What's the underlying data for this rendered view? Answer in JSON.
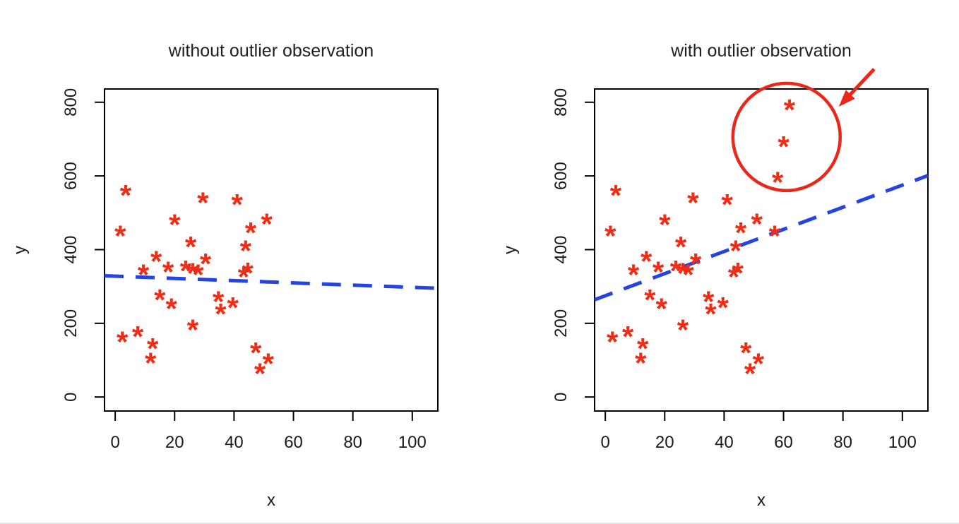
{
  "page": {
    "background": "#ffffff"
  },
  "colors": {
    "points": "#ee2d16",
    "regression": "#2443df",
    "annotation": "#e8281a",
    "axis": "#000000",
    "tick_labels": "#1b1b1b",
    "title": "#212121"
  },
  "chart_data": [
    {
      "type": "scatter",
      "title": "without outlier observation",
      "xlabel": "x",
      "ylabel": "y",
      "xlim": [
        -3.6,
        108.6
      ],
      "ylim": [
        -38,
        836
      ],
      "xticks": [
        0,
        20,
        40,
        60,
        80,
        100
      ],
      "yticks": [
        0,
        200,
        400,
        600,
        800
      ],
      "grid": false,
      "marker": "*",
      "points": [
        [
          3.5,
          560
        ],
        [
          1.7,
          450
        ],
        [
          29.5,
          540
        ],
        [
          41,
          535
        ],
        [
          20,
          480
        ],
        [
          25.4,
          420
        ],
        [
          45.6,
          458
        ],
        [
          51,
          482
        ],
        [
          43.9,
          410
        ],
        [
          13.8,
          381
        ],
        [
          9.5,
          344
        ],
        [
          17.8,
          352
        ],
        [
          23.7,
          355
        ],
        [
          26.1,
          348
        ],
        [
          27.9,
          344
        ],
        [
          30.4,
          374
        ],
        [
          43.2,
          339
        ],
        [
          44.6,
          349
        ],
        [
          15,
          276
        ],
        [
          18.9,
          252
        ],
        [
          34.7,
          272
        ],
        [
          35.5,
          238
        ],
        [
          39.6,
          255
        ],
        [
          26.1,
          195
        ],
        [
          2.4,
          162
        ],
        [
          7.6,
          177
        ],
        [
          12.6,
          144
        ],
        [
          11.9,
          105
        ],
        [
          47.3,
          133
        ],
        [
          48.7,
          76
        ],
        [
          51.5,
          103
        ]
      ],
      "regression_line": {
        "style": "dashed",
        "endpoints": [
          [
            -3.6,
            329
          ],
          [
            108.6,
            295
          ]
        ]
      }
    },
    {
      "type": "scatter",
      "title": "with outlier observation",
      "xlabel": "x",
      "ylabel": "y",
      "xlim": [
        -3.6,
        108.6
      ],
      "ylim": [
        -38,
        836
      ],
      "xticks": [
        0,
        20,
        40,
        60,
        80,
        100
      ],
      "yticks": [
        0,
        200,
        400,
        600,
        800
      ],
      "grid": false,
      "marker": "*",
      "points": [
        [
          3.5,
          560
        ],
        [
          1.7,
          450
        ],
        [
          29.5,
          540
        ],
        [
          41,
          535
        ],
        [
          20,
          480
        ],
        [
          25.4,
          420
        ],
        [
          45.6,
          458
        ],
        [
          51,
          482
        ],
        [
          43.9,
          410
        ],
        [
          13.8,
          381
        ],
        [
          9.5,
          344
        ],
        [
          17.8,
          352
        ],
        [
          23.7,
          355
        ],
        [
          26.1,
          348
        ],
        [
          27.9,
          344
        ],
        [
          30.4,
          374
        ],
        [
          43.2,
          339
        ],
        [
          44.6,
          349
        ],
        [
          15,
          276
        ],
        [
          18.9,
          252
        ],
        [
          34.7,
          272
        ],
        [
          35.5,
          238
        ],
        [
          39.6,
          255
        ],
        [
          26.1,
          195
        ],
        [
          2.4,
          162
        ],
        [
          7.6,
          177
        ],
        [
          12.6,
          144
        ],
        [
          11.9,
          105
        ],
        [
          47.3,
          133
        ],
        [
          48.7,
          76
        ],
        [
          51.5,
          103
        ],
        [
          57,
          450
        ]
      ],
      "outliers": [
        [
          62,
          792
        ],
        [
          60,
          692
        ],
        [
          58,
          595
        ]
      ],
      "regression_line": {
        "style": "dashed",
        "endpoints": [
          [
            -3.6,
            264
          ],
          [
            108.6,
            601
          ]
        ]
      },
      "annotation": {
        "circle": {
          "x": 61,
          "y": 706,
          "radius_px": 76
        },
        "arrow": {
          "tail": [
            90.5,
            890
          ],
          "tip": [
            78.6,
            788
          ]
        }
      }
    }
  ]
}
